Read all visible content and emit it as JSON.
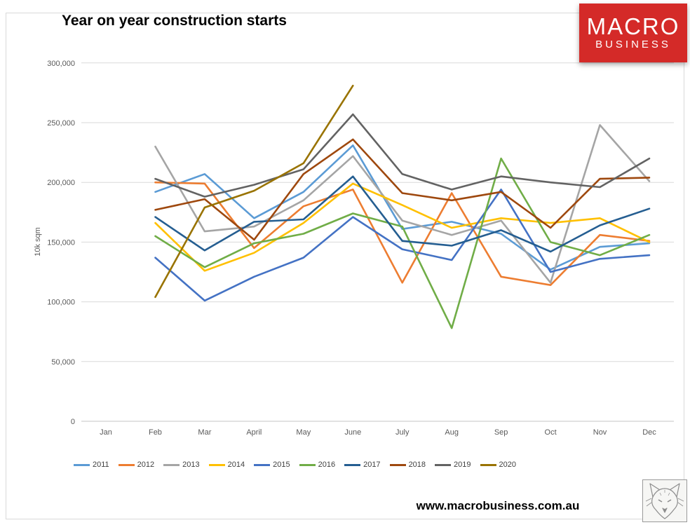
{
  "header": {
    "title": "Year on year construction starts"
  },
  "logo": {
    "line1": "MACRO",
    "line2": "BUSINESS",
    "bg_color": "#d42a28"
  },
  "footer": {
    "website": "www.macrobusiness.com.au"
  },
  "chart_data": {
    "type": "line",
    "title": "Year on year construction starts",
    "xlabel": "",
    "ylabel": "10k sqm",
    "ylim": [
      0,
      300000
    ],
    "ytick_step": 50000,
    "ytick_labels": [
      "0",
      "50,000",
      "100,000",
      "150,000",
      "200,000",
      "250,000",
      "300,000"
    ],
    "grid": true,
    "legend_position": "bottom",
    "categories": [
      "Jan",
      "Feb",
      "Mar",
      "April",
      "May",
      "June",
      "July",
      "Aug",
      "Sep",
      "Oct",
      "Nov",
      "Dec"
    ],
    "series": [
      {
        "name": "2011",
        "color": "#5B9BD5",
        "values": [
          null,
          192000,
          207000,
          170000,
          192000,
          231000,
          161000,
          167000,
          157000,
          127000,
          146000,
          149000
        ]
      },
      {
        "name": "2012",
        "color": "#ED7D31",
        "values": [
          null,
          200000,
          199000,
          145000,
          180000,
          194000,
          116000,
          191000,
          121000,
          114000,
          156000,
          151000
        ]
      },
      {
        "name": "2013",
        "color": "#A5A5A5",
        "values": [
          null,
          230000,
          159000,
          163000,
          185000,
          222000,
          168000,
          156000,
          168000,
          116000,
          248000,
          201000
        ]
      },
      {
        "name": "2014",
        "color": "#FFC000",
        "values": [
          null,
          166000,
          126000,
          141000,
          166000,
          199000,
          181000,
          162000,
          170000,
          166000,
          170000,
          150000
        ]
      },
      {
        "name": "2015",
        "color": "#4472C4",
        "values": [
          null,
          137000,
          101000,
          121000,
          137000,
          171000,
          144000,
          135000,
          194000,
          125000,
          136000,
          139000
        ]
      },
      {
        "name": "2016",
        "color": "#70AD47",
        "values": [
          null,
          155000,
          129000,
          149000,
          157000,
          174000,
          163000,
          78000,
          220000,
          150000,
          139000,
          156000
        ]
      },
      {
        "name": "2017",
        "color": "#255E91",
        "values": [
          null,
          171000,
          143000,
          167000,
          169000,
          205000,
          151000,
          147000,
          160000,
          142000,
          164000,
          178000
        ]
      },
      {
        "name": "2018",
        "color": "#9E480E",
        "values": [
          null,
          177000,
          186000,
          152000,
          207000,
          236000,
          191000,
          185000,
          192000,
          162000,
          203000,
          204000
        ]
      },
      {
        "name": "2019",
        "color": "#636363",
        "values": [
          null,
          203000,
          188000,
          198000,
          211000,
          257000,
          207000,
          194000,
          205000,
          200000,
          196000,
          220000
        ]
      },
      {
        "name": "2020",
        "color": "#997300",
        "values": [
          null,
          104000,
          179000,
          193000,
          216000,
          281000,
          null,
          null,
          null,
          null,
          null,
          null
        ]
      }
    ]
  }
}
